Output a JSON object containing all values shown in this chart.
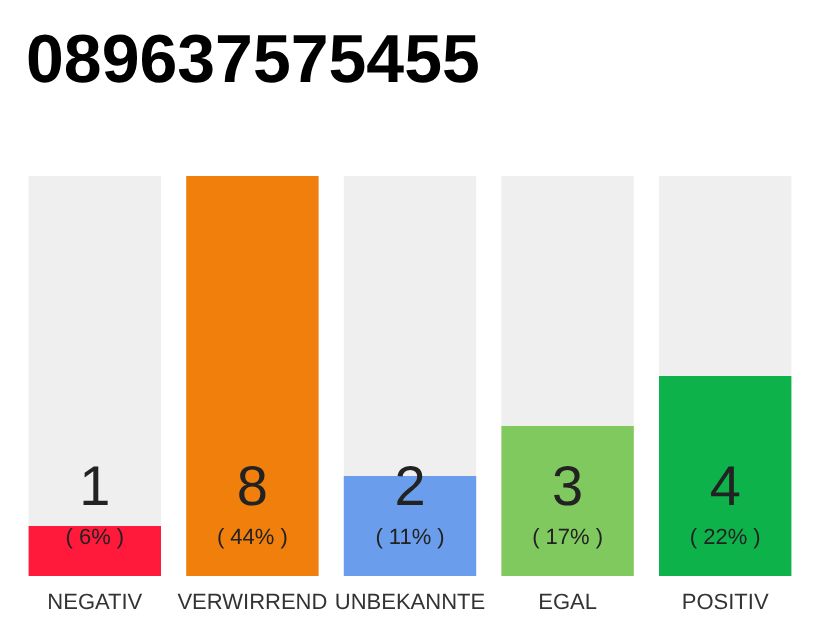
{
  "chart_data": {
    "type": "bar",
    "title": "089637575455",
    "categories": [
      "NEGATIV",
      "VERWIRREND",
      "UNBEKANNTE",
      "EGAL",
      "POSITIV"
    ],
    "values": [
      1,
      8,
      2,
      3,
      4
    ],
    "colors": [
      "#ff1a3c",
      "#f07f0c",
      "#6a9eec",
      "#80c95e",
      "#0db34a"
    ],
    "value_labels": [
      "1\n( 6% )",
      "8\n( 44% )",
      "2\n( 11% )",
      "3\n( 17% )",
      "4\n( 22% )"
    ],
    "grid": false
  }
}
